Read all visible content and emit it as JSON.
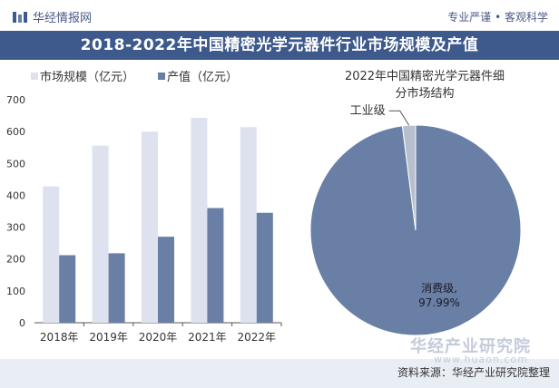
{
  "header": {
    "brand": "华经情报网",
    "slogan": "专业严谨 • 客观科学",
    "title": "2018-2022年中国精密光学元器件行业市场规模及产值"
  },
  "footer": {
    "source": "资料来源：华经产业研究院整理",
    "watermark_brand": "华经产业研究院",
    "watermark_url": "www.huaon.com"
  },
  "chart_data": [
    {
      "type": "bar",
      "categories": [
        "2018年",
        "2019年",
        "2020年",
        "2021年",
        "2022年"
      ],
      "series": [
        {
          "name": "市场规模（亿元）",
          "values": [
            428,
            556,
            600,
            643,
            614
          ],
          "color": "#dde2ee"
        },
        {
          "name": "产值（亿元）",
          "values": [
            212,
            218,
            270,
            360,
            345
          ],
          "color": "#6a7fa5"
        }
      ],
      "yticks": [
        0,
        100,
        200,
        300,
        400,
        500,
        600,
        700
      ],
      "ylim": [
        0,
        700
      ],
      "legend": "top-left",
      "grid": false
    },
    {
      "type": "pie",
      "title": "2022年中国精密光学元器件细分市场结构",
      "slices": [
        {
          "label": "消费级",
          "value": 97.99,
          "value_label": "97.99%",
          "color": "#6a7fa5"
        },
        {
          "label": "工业级",
          "value": 2.01,
          "color": "#b7bfcf"
        }
      ]
    }
  ]
}
